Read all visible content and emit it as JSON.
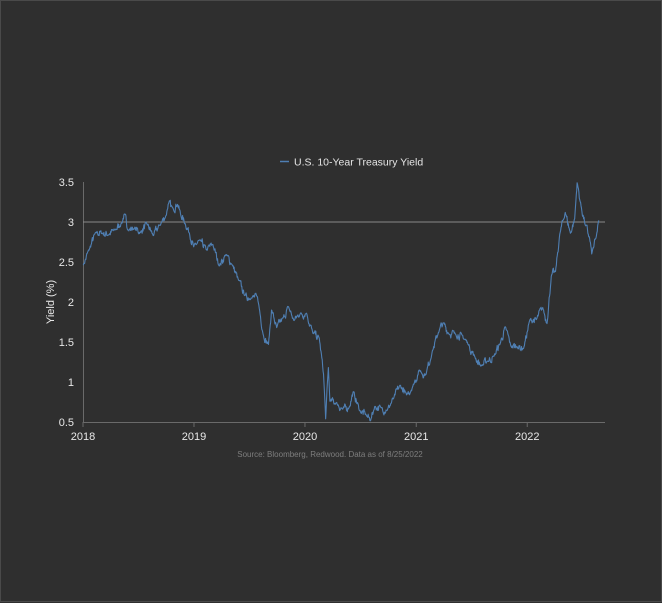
{
  "chart_data": {
    "type": "line",
    "title": "",
    "xlabel": "",
    "ylabel": "Yield (%)",
    "source": "Source: Bloomberg, Redwood. Data as of 8/25/2022",
    "legend": {
      "position": "top-center"
    },
    "xlim": [
      "2018-01-01",
      "2022-08-25"
    ],
    "ylim": [
      0.5,
      3.5
    ],
    "x_ticks": [
      "2018",
      "2019",
      "2020",
      "2021",
      "2022"
    ],
    "y_ticks": [
      "0.5",
      "1",
      "1.5",
      "2",
      "2.5",
      "3",
      "3.5"
    ],
    "grid": false,
    "reference_line": {
      "y": 3.0,
      "color": "#8a8a8a"
    },
    "series": [
      {
        "name": "U.S. 10-Year Treasury Yield",
        "color": "#4f7fb3",
        "x": [
          "2018-01-02",
          "2018-01-22",
          "2018-02-12",
          "2018-03-05",
          "2018-03-26",
          "2018-04-16",
          "2018-05-07",
          "2018-05-17",
          "2018-05-29",
          "2018-06-18",
          "2018-07-09",
          "2018-07-30",
          "2018-08-20",
          "2018-09-10",
          "2018-10-01",
          "2018-10-08",
          "2018-10-22",
          "2018-11-08",
          "2018-11-19",
          "2018-12-03",
          "2018-12-17",
          "2018-12-31",
          "2019-01-21",
          "2019-02-11",
          "2019-03-04",
          "2019-03-25",
          "2019-04-15",
          "2019-05-06",
          "2019-05-27",
          "2019-06-17",
          "2019-07-08",
          "2019-07-29",
          "2019-08-19",
          "2019-09-03",
          "2019-09-13",
          "2019-09-30",
          "2019-10-21",
          "2019-11-08",
          "2019-11-25",
          "2019-12-16",
          "2020-01-06",
          "2020-01-27",
          "2020-02-17",
          "2020-03-02",
          "2020-03-09",
          "2020-03-18",
          "2020-03-23",
          "2020-04-13",
          "2020-05-04",
          "2020-05-25",
          "2020-06-08",
          "2020-06-29",
          "2020-07-20",
          "2020-08-04",
          "2020-08-17",
          "2020-09-07",
          "2020-09-28",
          "2020-10-19",
          "2020-11-09",
          "2020-11-30",
          "2020-12-21",
          "2021-01-11",
          "2021-02-01",
          "2021-02-22",
          "2021-03-15",
          "2021-03-31",
          "2021-04-19",
          "2021-05-10",
          "2021-05-31",
          "2021-06-21",
          "2021-07-12",
          "2021-08-02",
          "2021-08-23",
          "2021-09-13",
          "2021-10-04",
          "2021-10-21",
          "2021-11-08",
          "2021-11-29",
          "2021-12-20",
          "2022-01-10",
          "2022-01-31",
          "2022-02-21",
          "2022-03-07",
          "2022-03-21",
          "2022-04-04",
          "2022-04-18",
          "2022-05-06",
          "2022-05-23",
          "2022-06-06",
          "2022-06-14",
          "2022-06-27",
          "2022-07-11",
          "2022-07-25",
          "2022-08-01",
          "2022-08-15",
          "2022-08-25"
        ],
        "y": [
          2.46,
          2.66,
          2.87,
          2.86,
          2.84,
          2.9,
          2.98,
          3.1,
          2.9,
          2.92,
          2.87,
          2.98,
          2.83,
          2.96,
          3.08,
          3.22,
          3.18,
          3.22,
          3.08,
          2.98,
          2.86,
          2.69,
          2.77,
          2.65,
          2.72,
          2.45,
          2.59,
          2.47,
          2.28,
          2.08,
          2.05,
          2.06,
          1.55,
          1.47,
          1.9,
          1.68,
          1.8,
          1.94,
          1.77,
          1.85,
          1.86,
          1.61,
          1.55,
          1.1,
          0.54,
          1.18,
          0.76,
          0.74,
          0.66,
          0.68,
          0.88,
          0.64,
          0.59,
          0.52,
          0.69,
          0.68,
          0.65,
          0.8,
          0.96,
          0.84,
          0.95,
          1.15,
          1.09,
          1.37,
          1.62,
          1.74,
          1.6,
          1.6,
          1.59,
          1.47,
          1.32,
          1.2,
          1.26,
          1.32,
          1.48,
          1.69,
          1.45,
          1.44,
          1.42,
          1.78,
          1.78,
          1.93,
          1.73,
          2.32,
          2.38,
          2.85,
          3.12,
          2.86,
          3.04,
          3.49,
          3.2,
          2.96,
          2.8,
          2.6,
          2.8,
          3.02
        ]
      }
    ]
  }
}
